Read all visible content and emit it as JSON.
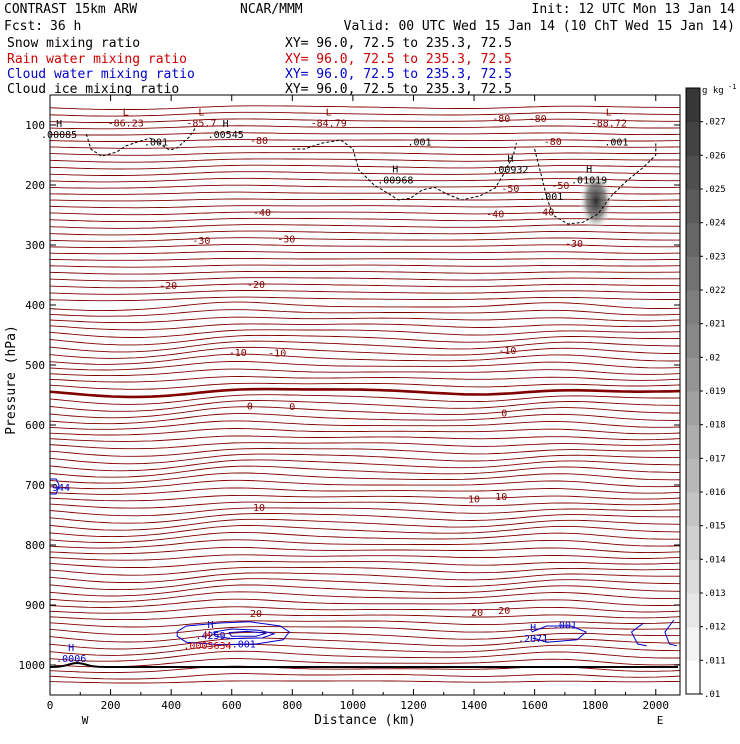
{
  "header": {
    "title": "CONTRAST 15km ARW",
    "center": "NCAR/MMM",
    "init": "Init: 12 UTC Mon 13 Jan 14",
    "fcst_label": "Fcst:",
    "fcst_value": "36 h",
    "valid": "Valid: 00 UTC Wed 15 Jan 14 (10 ChT Wed 15 Jan 14)"
  },
  "fields": [
    {
      "name": "Snow mixing ratio",
      "xy": "XY=  96.0, 72.5 to 235.3, 72.5",
      "color": "#000000"
    },
    {
      "name": "Rain water mixing ratio",
      "xy": "XY=  96.0, 72.5 to 235.3, 72.5",
      "color": "#cc0000"
    },
    {
      "name": "Cloud water mixing ratio",
      "xy": "XY=  96.0, 72.5 to 235.3, 72.5",
      "color": "#0000cc"
    },
    {
      "name": "Cloud ice mixing ratio",
      "xy": "XY=  96.0, 72.5 to 235.3, 72.5",
      "color": "#000000"
    }
  ],
  "chart_data": {
    "type": "contour",
    "xlabel": "Distance (km)",
    "ylabel": "Pressure (hPa)",
    "xlim": [
      0,
      2080
    ],
    "ylim": [
      1050,
      50
    ],
    "xticks": [
      0,
      200,
      400,
      600,
      800,
      1000,
      1200,
      1400,
      1600,
      1800,
      2000
    ],
    "yticks": [
      100,
      200,
      300,
      400,
      500,
      600,
      700,
      800,
      900,
      1000
    ],
    "x_end_labels": {
      "left": "W",
      "right": "E"
    },
    "colorbar": {
      "unit": "g kg",
      "unit_exp": "-1",
      "labels": [
        ".027",
        ".026",
        ".025",
        ".024",
        ".023",
        ".022",
        ".021",
        ".02",
        ".019",
        ".018",
        ".017",
        ".016",
        ".015",
        ".014",
        ".013",
        ".012",
        ".011",
        ".01"
      ],
      "min": 0.01,
      "max": 0.028,
      "step": 0.001
    },
    "temperature_contour_labels": [
      {
        "text": "-80",
        "x": 690,
        "p": 127
      },
      {
        "text": "-80",
        "x": 1490,
        "p": 90
      },
      {
        "text": "-80",
        "x": 1610,
        "p": 90
      },
      {
        "text": "-80",
        "x": 1660,
        "p": 128
      },
      {
        "text": "-50",
        "x": 1520,
        "p": 207
      },
      {
        "text": "-50",
        "x": 1685,
        "p": 202
      },
      {
        "text": "-40",
        "x": 700,
        "p": 247
      },
      {
        "text": "-40",
        "x": 1470,
        "p": 249
      },
      {
        "text": "-40",
        "x": 1635,
        "p": 246
      },
      {
        "text": "-30",
        "x": 500,
        "p": 293
      },
      {
        "text": "-30",
        "x": 780,
        "p": 291
      },
      {
        "text": "-30",
        "x": 1730,
        "p": 298
      },
      {
        "text": "-20",
        "x": 390,
        "p": 368
      },
      {
        "text": "-20",
        "x": 680,
        "p": 367
      },
      {
        "text": "-10",
        "x": 620,
        "p": 480
      },
      {
        "text": "-10",
        "x": 750,
        "p": 481
      },
      {
        "text": "-10",
        "x": 1510,
        "p": 477
      },
      {
        "text": "0",
        "x": 660,
        "p": 569
      },
      {
        "text": "0",
        "x": 800,
        "p": 570
      },
      {
        "text": "0",
        "x": 1500,
        "p": 581
      },
      {
        "text": "10",
        "x": 1400,
        "p": 724
      },
      {
        "text": "10",
        "x": 1490,
        "p": 720
      },
      {
        "text": "10",
        "x": 690,
        "p": 738
      },
      {
        "text": "20",
        "x": 680,
        "p": 915
      },
      {
        "text": "20",
        "x": 1410,
        "p": 913
      },
      {
        "text": "20",
        "x": 1500,
        "p": 910
      }
    ],
    "extrema_labels": [
      {
        "sym": "L",
        "value": "-86.23",
        "x": 250,
        "p": 94,
        "color": "#800000"
      },
      {
        "sym": "L",
        "value": "-85.7",
        "x": 500,
        "p": 94,
        "color": "#800000"
      },
      {
        "sym": "L",
        "value": "-84.79",
        "x": 920,
        "p": 94,
        "color": "#800000"
      },
      {
        "sym": "L",
        "value": "-88.72",
        "x": 1845,
        "p": 94,
        "color": "#800000"
      },
      {
        "sym": "H",
        "value": ".00085",
        "x": 30,
        "p": 113,
        "color": "#000000"
      },
      {
        "sym": "H",
        "value": ".00545",
        "x": 580,
        "p": 113,
        "color": "#000000"
      },
      {
        "sym": "H",
        "value": ".00968",
        "x": 1140,
        "p": 189,
        "color": "#000000"
      },
      {
        "sym": "H",
        "value": ".00932",
        "x": 1520,
        "p": 172,
        "color": "#000000"
      },
      {
        "sym": "H",
        "value": ".01019",
        "x": 1780,
        "p": 189,
        "color": "#000000"
      },
      {
        "sym": "H",
        "value": ".0006",
        "x": 70,
        "p": 987,
        "color": "#0000cc"
      },
      {
        "sym": "H",
        "value": ".4259",
        "x": 530,
        "p": 948,
        "color": "#0000cc"
      },
      {
        "sym": "H",
        "value": ".0005634",
        "x": 520,
        "p": 965,
        "color": "#cc0000"
      },
      {
        "sym": "H",
        "value": ".2071",
        "x": 1595,
        "p": 953,
        "color": "#0000cc"
      }
    ],
    "cloud_ice_labels": [
      {
        "text": ".001",
        "x": 350,
        "p": 129
      },
      {
        "text": ".001",
        "x": 1220,
        "p": 129
      },
      {
        "text": ".001",
        "x": 1870,
        "p": 129
      },
      {
        "text": ".001",
        "x": 1655,
        "p": 220
      }
    ],
    "cloud_water_labels": [
      {
        "text": ".001",
        "x": 640,
        "p": 966
      },
      {
        "text": ".001",
        "x": 1700,
        "p": 934
      }
    ],
    "left_edge_label": {
      "text": "944",
      "x": 0,
      "p": 705
    }
  }
}
